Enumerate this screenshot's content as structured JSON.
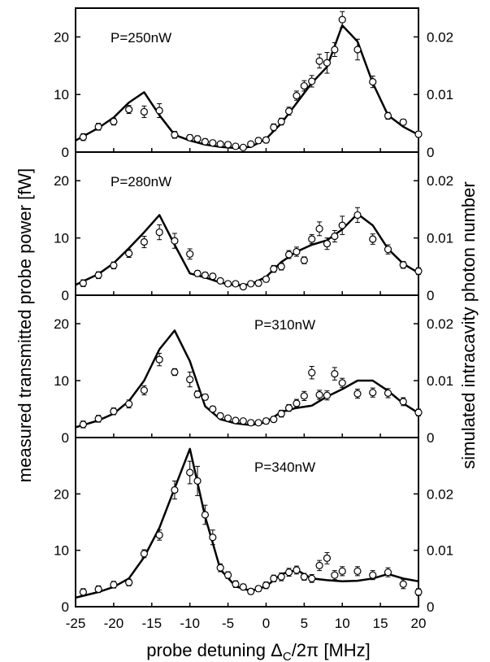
{
  "chart_data": {
    "type": "scatter",
    "xlabel_prefix": "probe detuning ",
    "xlabel_symbol": "Δ",
    "xlabel_subscript": "C",
    "xlabel_suffix": "/2π [MHz]",
    "ylabel_left": "measured transmitted probe power [fW]",
    "ylabel_right": "simulated intracavity photon number",
    "x_ticks": [
      -25,
      -20,
      -15,
      -10,
      -5,
      0,
      5,
      10,
      15,
      20
    ],
    "xlim": [
      -25,
      20
    ],
    "panels": [
      {
        "label": "P=250nW",
        "ylim": [
          0,
          25
        ],
        "left_ticks": [
          0,
          10,
          20
        ],
        "right_ticks": [
          "0",
          "0.01",
          "0.02"
        ],
        "measured": {
          "x": [
            -24,
            -22,
            -20,
            -18,
            -16,
            -14,
            -12,
            -10,
            -9,
            -8,
            -7,
            -6,
            -5,
            -4,
            -3,
            -2,
            -1,
            0,
            1,
            2,
            3,
            4,
            5,
            6,
            7,
            8,
            9,
            10,
            12,
            14,
            16,
            18,
            20
          ],
          "y": [
            2.6,
            4.4,
            5.3,
            7.4,
            7.0,
            7.2,
            3.0,
            2.5,
            2.3,
            1.8,
            1.6,
            1.4,
            1.3,
            1.0,
            0.8,
            1.4,
            2.0,
            2.1,
            4.3,
            5.3,
            7.1,
            9.8,
            11.5,
            12.3,
            15.8,
            15.5,
            17.8,
            23.0,
            17.8,
            12.2,
            6.3,
            5.2,
            3.1
          ],
          "err": [
            0.6,
            0.6,
            0.6,
            0.7,
            1.0,
            1.2,
            0.6,
            0.5,
            0.5,
            0.5,
            0.4,
            0.4,
            0.4,
            0.4,
            0.4,
            0.4,
            0.5,
            0.5,
            0.6,
            0.6,
            0.7,
            0.8,
            0.9,
            1.0,
            1.2,
            1.8,
            1.2,
            1.4,
            1.8,
            1.0,
            0.6,
            0.5,
            0.5
          ]
        },
        "simulated": {
          "x": [
            -25,
            -22,
            -20,
            -18,
            -16,
            -14,
            -12,
            -10,
            -8,
            -6,
            -4,
            -2,
            0,
            2,
            4,
            6,
            8,
            10,
            12,
            14,
            16,
            18,
            20
          ],
          "y": [
            2.0,
            4.2,
            6.0,
            8.6,
            10.4,
            6.4,
            3.0,
            2.0,
            1.3,
            0.9,
            0.7,
            0.9,
            2.3,
            5.0,
            8.5,
            12.0,
            14.8,
            22.0,
            19.2,
            12.0,
            6.4,
            4.4,
            3.0
          ]
        }
      },
      {
        "label": "P=280nW",
        "ylim": [
          0,
          25
        ],
        "left_ticks": [
          0,
          10,
          20
        ],
        "right_ticks": [
          "0",
          "0.01",
          "0.02"
        ],
        "measured": {
          "x": [
            -24,
            -22,
            -20,
            -18,
            -16,
            -14,
            -12,
            -10,
            -9,
            -8,
            -7,
            -6,
            -5,
            -4,
            -3,
            -2,
            -1,
            0,
            1,
            2,
            3,
            4,
            5,
            6,
            7,
            8,
            9,
            10,
            12,
            14,
            16,
            18,
            20
          ],
          "y": [
            2.1,
            3.5,
            5.2,
            7.3,
            9.3,
            11.0,
            9.5,
            7.2,
            3.8,
            3.5,
            3.3,
            2.5,
            2.0,
            2.0,
            1.5,
            2.0,
            2.1,
            2.8,
            4.6,
            5.0,
            7.1,
            7.6,
            6.1,
            9.8,
            11.6,
            9.0,
            10.3,
            12.2,
            14.0,
            9.8,
            8.0,
            5.3,
            4.2
          ],
          "err": [
            0.6,
            0.6,
            0.6,
            0.7,
            1.0,
            1.3,
            1.3,
            0.9,
            0.5,
            0.5,
            0.5,
            0.4,
            0.4,
            0.4,
            0.4,
            0.4,
            0.5,
            0.5,
            0.6,
            0.6,
            0.7,
            0.8,
            0.6,
            0.8,
            1.2,
            1.0,
            1.0,
            1.6,
            1.3,
            0.9,
            0.8,
            0.6,
            0.6
          ]
        },
        "simulated": {
          "x": [
            -25,
            -22,
            -20,
            -18,
            -16,
            -14,
            -12,
            -10,
            -8,
            -6,
            -4,
            -2,
            0,
            2,
            4,
            6,
            8,
            10,
            12,
            14,
            16,
            18,
            20
          ],
          "y": [
            1.8,
            3.7,
            5.6,
            8.2,
            11.0,
            14.0,
            8.8,
            3.8,
            3.1,
            2.2,
            1.7,
            1.9,
            3.2,
            5.8,
            7.6,
            8.8,
            9.6,
            11.5,
            14.2,
            12.2,
            8.1,
            5.5,
            3.9
          ]
        }
      },
      {
        "label": "P=310nW",
        "ylim": [
          0,
          25
        ],
        "left_ticks": [
          0,
          10,
          20
        ],
        "right_ticks": [
          "0",
          "0.01",
          "0.02"
        ],
        "measured": {
          "x": [
            -24,
            -22,
            -20,
            -18,
            -16,
            -14,
            -12,
            -10,
            -9,
            -8,
            -7,
            -6,
            -5,
            -4,
            -3,
            -2,
            -1,
            0,
            1,
            2,
            3,
            4,
            5,
            6,
            7,
            8,
            9,
            10,
            12,
            14,
            16,
            18,
            20
          ],
          "y": [
            2.3,
            3.3,
            4.6,
            5.9,
            8.3,
            13.7,
            11.5,
            10.2,
            7.6,
            7.1,
            5.0,
            3.8,
            3.4,
            3.0,
            2.9,
            2.6,
            2.6,
            2.9,
            3.2,
            4.2,
            5.2,
            6.0,
            7.3,
            11.4,
            7.5,
            7.4,
            11.2,
            9.6,
            7.7,
            7.9,
            7.8,
            6.3,
            4.4
          ],
          "err": [
            0.6,
            0.6,
            0.6,
            0.7,
            0.8,
            1.1,
            0.6,
            1.3,
            0.6,
            0.5,
            0.5,
            0.5,
            0.4,
            0.4,
            0.4,
            0.4,
            0.4,
            0.5,
            0.5,
            0.6,
            0.6,
            0.7,
            0.8,
            1.1,
            0.8,
            0.8,
            1.1,
            0.8,
            0.8,
            0.8,
            0.8,
            0.7,
            0.6
          ]
        },
        "simulated": {
          "x": [
            -25,
            -22,
            -20,
            -18,
            -16,
            -14,
            -12,
            -10,
            -8,
            -6,
            -4,
            -2,
            0,
            2,
            4,
            6,
            8,
            10,
            12,
            14,
            16,
            18,
            20
          ],
          "y": [
            1.8,
            3.0,
            4.2,
            6.4,
            10.0,
            15.5,
            18.8,
            13.4,
            5.5,
            3.2,
            2.5,
            2.2,
            2.7,
            4.5,
            5.2,
            5.6,
            7.2,
            8.5,
            10.0,
            10.0,
            8.2,
            6.0,
            4.3
          ]
        }
      },
      {
        "label": "P=340nW",
        "ylim": [
          0,
          30
        ],
        "left_ticks": [
          0,
          10,
          20
        ],
        "right_ticks": [
          "0",
          "0.01",
          "0.02"
        ],
        "measured": {
          "x": [
            -24,
            -22,
            -20,
            -18,
            -16,
            -14,
            -12,
            -10,
            -9,
            -8,
            -7,
            -6,
            -5,
            -4,
            -3,
            -2,
            -1,
            0,
            1,
            2,
            3,
            4,
            5,
            6,
            7,
            8,
            9,
            10,
            12,
            14,
            16,
            18,
            20
          ],
          "y": [
            2.6,
            3.1,
            3.9,
            4.3,
            9.4,
            12.7,
            20.7,
            23.8,
            22.3,
            16.3,
            12.3,
            6.9,
            5.6,
            4.0,
            3.5,
            2.7,
            3.2,
            3.8,
            5.0,
            5.3,
            6.1,
            6.5,
            5.3,
            5.0,
            7.3,
            8.6,
            5.6,
            6.3,
            6.3,
            5.6,
            6.1,
            4.0,
            2.6
          ],
          "err": [
            0.6,
            0.6,
            0.6,
            0.6,
            0.7,
            0.9,
            1.6,
            2.0,
            2.6,
            1.7,
            1.3,
            0.7,
            0.6,
            0.6,
            0.5,
            0.5,
            0.5,
            0.6,
            0.6,
            0.7,
            0.7,
            0.7,
            0.6,
            0.7,
            0.9,
            1.0,
            0.8,
            0.8,
            0.8,
            0.8,
            0.8,
            0.8,
            0.6
          ]
        },
        "simulated": {
          "x": [
            -25,
            -22,
            -20,
            -18,
            -16,
            -14,
            -12,
            -10,
            -8,
            -6,
            -4,
            -2,
            0,
            2,
            4,
            6,
            8,
            10,
            12,
            14,
            16,
            18,
            20
          ],
          "y": [
            1.6,
            2.6,
            3.5,
            5.0,
            8.8,
            14.0,
            21.0,
            28.0,
            16.0,
            6.6,
            3.6,
            2.8,
            3.6,
            5.8,
            6.5,
            5.0,
            4.7,
            4.5,
            4.6,
            5.0,
            5.8,
            5.0,
            4.5
          ]
        }
      }
    ]
  }
}
